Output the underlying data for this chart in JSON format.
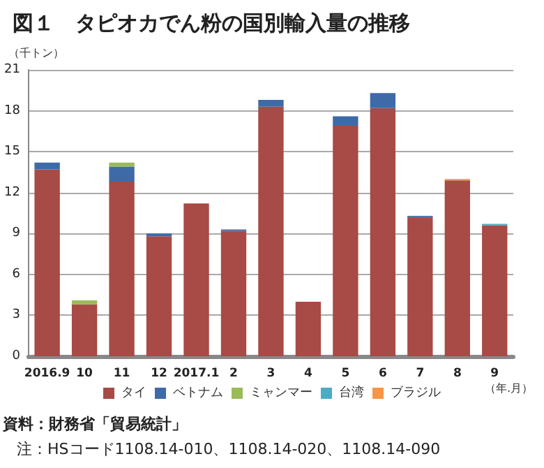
{
  "chart_data": {
    "type": "bar",
    "stacked": true,
    "title": "図１　タピオカでん粉の国別輸入量の推移",
    "ylabel": "（千トン）",
    "xlabel": "（年.月）",
    "categories": [
      "2016.9",
      "10",
      "11",
      "12",
      "2017.1",
      "2",
      "3",
      "4",
      "5",
      "6",
      "7",
      "8",
      "9"
    ],
    "series": [
      {
        "name": "タイ",
        "color": "#a84a46",
        "values": [
          13.7,
          3.8,
          12.8,
          8.8,
          11.2,
          9.2,
          18.3,
          4.0,
          16.9,
          18.2,
          10.2,
          12.9,
          9.6
        ]
      },
      {
        "name": "ベトナム",
        "color": "#3e6aa8",
        "values": [
          0.5,
          null,
          1.1,
          0.2,
          null,
          0.1,
          0.5,
          null,
          0.7,
          1.1,
          0.1,
          null,
          null
        ]
      },
      {
        "name": "ミャンマー",
        "color": "#9bbb59",
        "values": [
          null,
          0.3,
          0.3,
          null,
          null,
          null,
          null,
          null,
          null,
          null,
          null,
          null,
          null
        ]
      },
      {
        "name": "台湾",
        "color": "#4bacc6",
        "values": [
          null,
          null,
          null,
          null,
          null,
          null,
          null,
          null,
          null,
          null,
          null,
          null,
          0.1
        ]
      },
      {
        "name": "ブラジル",
        "color": "#f79646",
        "values": [
          null,
          null,
          null,
          null,
          null,
          null,
          null,
          null,
          null,
          null,
          null,
          0.1,
          null
        ]
      }
    ],
    "ylim": [
      0,
      21
    ],
    "yticks": [
      0,
      3,
      6,
      9,
      12,
      15,
      18,
      21
    ],
    "grid": "y",
    "legend": "bottom",
    "annotations": [
      "資料：財務省「貿易統計」",
      "注：HSコード1108.14-010、1108.14-020、1108.14-090"
    ]
  }
}
